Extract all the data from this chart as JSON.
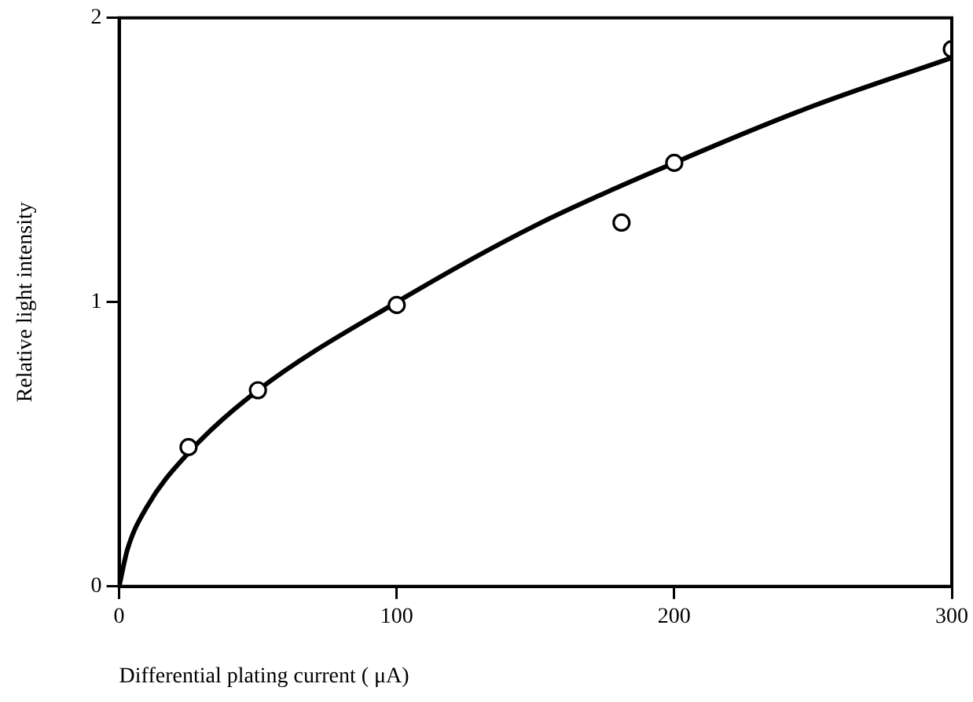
{
  "chart_data": {
    "type": "scatter",
    "xlabel": "Differential plating current ( μA)",
    "ylabel": "Relative light intensity",
    "xlim": [
      0,
      300
    ],
    "ylim": [
      0,
      2
    ],
    "xticks": [
      0,
      100,
      200,
      300
    ],
    "yticks": [
      0,
      1,
      2
    ],
    "grid": false,
    "legend": false,
    "marker": "circle",
    "series": [
      {
        "color": "#000000",
        "x": [
          25,
          50,
          100,
          181,
          200,
          300
        ],
        "values": [
          0.49,
          0.69,
          0.99,
          1.28,
          1.49,
          1.89
        ]
      },
      {
        "type": "line",
        "color": "#000000",
        "marker": "none",
        "x": [
          0,
          3,
          10,
          25,
          50,
          100,
          150,
          200,
          250,
          300
        ],
        "values": [
          0,
          0.13,
          0.28,
          0.47,
          0.69,
          1.0,
          1.27,
          1.49,
          1.69,
          1.86
        ]
      }
    ]
  }
}
